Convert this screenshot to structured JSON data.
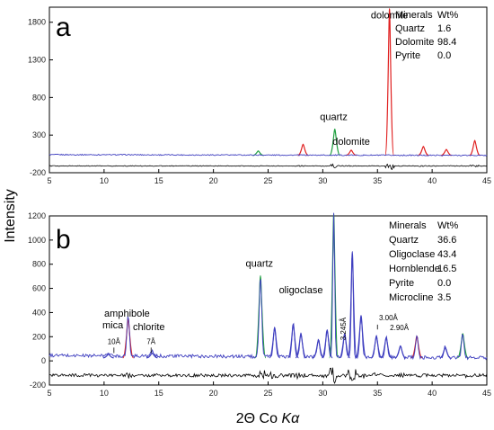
{
  "figure": {
    "ylabel": "Intensity",
    "xlabel_main": "2Θ Co ",
    "xlabel_italic": "Kα"
  },
  "chart_data": [
    {
      "type": "line",
      "panel": "a",
      "xlim": [
        5,
        45
      ],
      "ylim": [
        -200,
        2000
      ],
      "x_ticks": [
        5,
        10,
        15,
        20,
        25,
        30,
        35,
        40,
        45
      ],
      "y_ticks": [
        -200,
        300,
        800,
        1300,
        1800
      ],
      "colors": {
        "background": "#4040c0",
        "dolomite": "#e02020",
        "quartz": "#20a040",
        "residual": "#000000"
      },
      "peaks": [
        {
          "x": 24.1,
          "height": 60,
          "color": "green"
        },
        {
          "x": 28.2,
          "height": 150,
          "color": "red"
        },
        {
          "x": 31.1,
          "height": 350,
          "color": "green"
        },
        {
          "x": 32.6,
          "height": 70,
          "color": "red"
        },
        {
          "x": 36.1,
          "height": 1950,
          "color": "red"
        },
        {
          "x": 39.2,
          "height": 120,
          "color": "red"
        },
        {
          "x": 41.3,
          "height": 80,
          "color": "red"
        },
        {
          "x": 43.9,
          "height": 200,
          "color": "red"
        }
      ],
      "annotations": [
        {
          "text": "dolomite",
          "x": 36.1,
          "y": 1850
        },
        {
          "text": "quartz",
          "x": 31.0,
          "y": 500
        },
        {
          "text": "dolomite",
          "x": 32.6,
          "y": 170
        }
      ],
      "table": {
        "headers": [
          "Minerals",
          "Wt%"
        ],
        "rows": [
          [
            "Quartz",
            "1.6"
          ],
          [
            "Dolomite",
            "98.4"
          ],
          [
            "Pyrite",
            "0.0"
          ]
        ]
      }
    },
    {
      "type": "line",
      "panel": "b",
      "xlim": [
        5,
        45
      ],
      "ylim": [
        -200,
        1200
      ],
      "x_ticks": [
        5,
        10,
        15,
        20,
        25,
        30,
        35,
        40,
        45
      ],
      "y_ticks": [
        -200,
        0,
        200,
        400,
        600,
        800,
        1000,
        1200
      ],
      "colors": {
        "background": "#4040c0",
        "quartz": "#20a040",
        "amphibole": "#e02020",
        "residual": "#000000"
      },
      "peaks": [
        {
          "x": 10.4,
          "height": 30,
          "color": "blue"
        },
        {
          "x": 12.2,
          "height": 330,
          "color": "red"
        },
        {
          "x": 14.4,
          "height": 40,
          "color": "blue"
        },
        {
          "x": 24.3,
          "height": 680,
          "color": "green"
        },
        {
          "x": 25.6,
          "height": 250,
          "color": "blue"
        },
        {
          "x": 27.3,
          "height": 280,
          "color": "blue"
        },
        {
          "x": 28.0,
          "height": 200,
          "color": "blue"
        },
        {
          "x": 29.6,
          "height": 150,
          "color": "blue"
        },
        {
          "x": 30.4,
          "height": 230,
          "color": "blue"
        },
        {
          "x": 31.0,
          "height": 1190,
          "color": "green"
        },
        {
          "x": 32.0,
          "height": 200,
          "color": "blue"
        },
        {
          "x": 32.7,
          "height": 880,
          "color": "blue"
        },
        {
          "x": 33.5,
          "height": 350,
          "color": "blue"
        },
        {
          "x": 34.9,
          "height": 180,
          "color": "blue"
        },
        {
          "x": 35.8,
          "height": 170,
          "color": "blue"
        },
        {
          "x": 37.1,
          "height": 100,
          "color": "blue"
        },
        {
          "x": 38.6,
          "height": 180,
          "color": "red"
        },
        {
          "x": 41.2,
          "height": 90,
          "color": "blue"
        },
        {
          "x": 42.8,
          "height": 200,
          "color": "green"
        }
      ],
      "annotations": [
        {
          "text": "quartz",
          "x": 24.2,
          "y": 780
        },
        {
          "text": "oligoclase",
          "x": 28.0,
          "y": 560
        },
        {
          "text": "amphibole",
          "x": 12.1,
          "y": 365
        },
        {
          "text": "mica",
          "x": 10.8,
          "y": 270
        },
        {
          "text": "chlorite",
          "x": 14.1,
          "y": 255
        },
        {
          "text": "10Å",
          "x": 10.9,
          "y": 140
        },
        {
          "text": "7Å",
          "x": 14.3,
          "y": 140
        },
        {
          "text": "3.245Å",
          "x": 32.1,
          "y": 265
        },
        {
          "text": "3.00Å",
          "x": 36.0,
          "y": 335
        },
        {
          "text": "2.90Å",
          "x": 37.0,
          "y": 255
        }
      ],
      "table": {
        "headers": [
          "Minerals",
          "Wt%"
        ],
        "rows": [
          [
            "Quartz",
            "36.6"
          ],
          [
            "Oligoclase",
            "43.4"
          ],
          [
            "Hornblende",
            "16.5"
          ],
          [
            "Pyrite",
            "0.0"
          ],
          [
            "Microcline",
            "3.5"
          ]
        ]
      }
    }
  ]
}
